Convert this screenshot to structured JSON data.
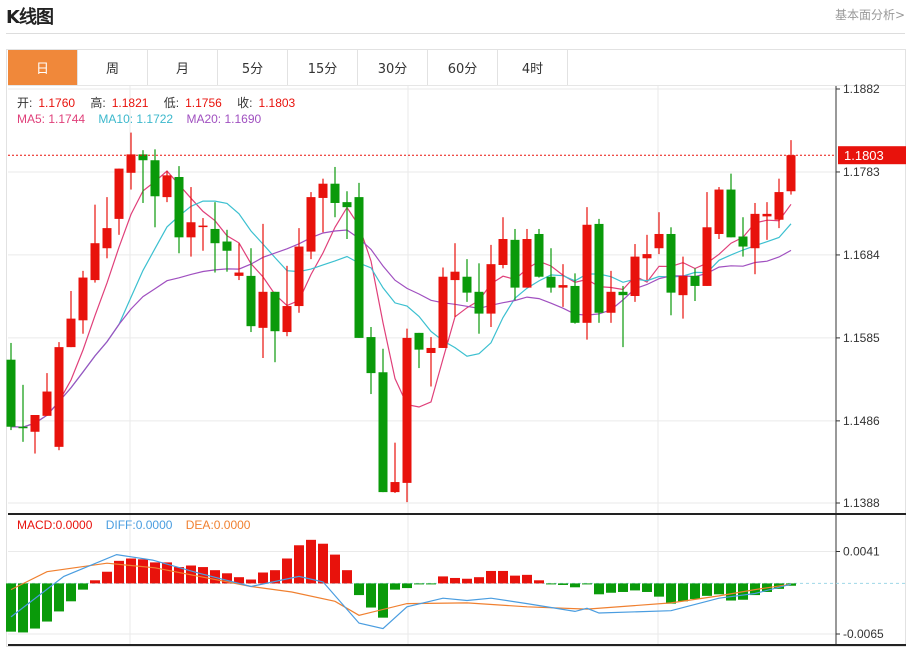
{
  "header": {
    "title": "K线图",
    "link": "基本面分析>"
  },
  "tabs": [
    {
      "label": "日",
      "active": true
    },
    {
      "label": "周"
    },
    {
      "label": "月"
    },
    {
      "label": "5分"
    },
    {
      "label": "15分"
    },
    {
      "label": "30分"
    },
    {
      "label": "60分"
    },
    {
      "label": "4时"
    }
  ],
  "ohlc": {
    "open_label": "开:",
    "open": "1.1760",
    "high_label": "高:",
    "high": "1.1821",
    "low_label": "低:",
    "low": "1.1756",
    "close_label": "收:",
    "close": "1.1803"
  },
  "ma": {
    "ma5": "MA5: 1.1744",
    "ma10": "MA10: 1.1722",
    "ma20": "MA20: 1.1690"
  },
  "macd_legend": {
    "macd": "MACD:0.0000",
    "diff": "DIFF:0.0000",
    "dea": "DEA:0.0000"
  },
  "current_price_label": "1.1803",
  "colors": {
    "up": "#e8120c",
    "down": "#0a9a0a",
    "ma5": "#e0407a",
    "ma10": "#3cc0d0",
    "ma20": "#a050c0",
    "diff": "#4a9de0",
    "dea": "#f08030",
    "active_tab": "#f0883a"
  },
  "chart_data": [
    {
      "type": "candlestick",
      "y_ticks": [
        "1.1882",
        "1.1783",
        "1.1684",
        "1.1585",
        "1.1486",
        "1.1388"
      ],
      "ylim": [
        1.1388,
        1.1882
      ],
      "grid": true,
      "current_price": 1.1803,
      "candles": [
        [
          1.1559,
          1.1579,
          1.1475,
          1.1479
        ],
        [
          1.1479,
          1.1529,
          1.1461,
          1.1478
        ],
        [
          1.1473,
          1.1493,
          1.1447,
          1.1493
        ],
        [
          1.1492,
          1.1543,
          1.1492,
          1.1521
        ],
        [
          1.1455,
          1.158,
          1.1451,
          1.1574
        ],
        [
          1.1574,
          1.1641,
          1.1574,
          1.1608
        ],
        [
          1.1606,
          1.1665,
          1.159,
          1.1657
        ],
        [
          1.1654,
          1.1744,
          1.1651,
          1.1698
        ],
        [
          1.1692,
          1.1753,
          1.168,
          1.1716
        ],
        [
          1.1727,
          1.1787,
          1.1708,
          1.1787
        ],
        [
          1.1782,
          1.183,
          1.1762,
          1.1804
        ],
        [
          1.1804,
          1.1809,
          1.1746,
          1.1797
        ],
        [
          1.1797,
          1.181,
          1.1717,
          1.1754
        ],
        [
          1.1753,
          1.1784,
          1.1747,
          1.1779
        ],
        [
          1.1777,
          1.179,
          1.1686,
          1.1705
        ],
        [
          1.1705,
          1.1765,
          1.1682,
          1.1723
        ],
        [
          1.1718,
          1.1728,
          1.1689,
          1.1719
        ],
        [
          1.1715,
          1.1747,
          1.1663,
          1.1698
        ],
        [
          1.17,
          1.1714,
          1.1664,
          1.1689
        ],
        [
          1.1659,
          1.1698,
          1.1654,
          1.1663
        ],
        [
          1.1659,
          1.1692,
          1.1592,
          1.1599
        ],
        [
          1.1597,
          1.1721,
          1.1561,
          1.164
        ],
        [
          1.164,
          1.164,
          1.1556,
          1.1593
        ],
        [
          1.1592,
          1.1671,
          1.1587,
          1.1623
        ],
        [
          1.1623,
          1.1716,
          1.1615,
          1.1694
        ],
        [
          1.1688,
          1.1759,
          1.1679,
          1.1753
        ],
        [
          1.1752,
          1.1775,
          1.1711,
          1.1769
        ],
        [
          1.1769,
          1.1789,
          1.1729,
          1.1746
        ],
        [
          1.1747,
          1.176,
          1.1703,
          1.1741
        ],
        [
          1.1753,
          1.177,
          1.1585,
          1.1585
        ],
        [
          1.1586,
          1.1598,
          1.1518,
          1.1543
        ],
        [
          1.1544,
          1.1572,
          1.1401,
          1.1401
        ],
        [
          1.1401,
          1.146,
          1.14,
          1.1413
        ],
        [
          1.1412,
          1.1596,
          1.1389,
          1.1585
        ],
        [
          1.1591,
          1.1591,
          1.1549,
          1.1571
        ],
        [
          1.1567,
          1.1586,
          1.1527,
          1.1573
        ],
        [
          1.1573,
          1.1669,
          1.1573,
          1.1658
        ],
        [
          1.1654,
          1.1698,
          1.161,
          1.1664
        ],
        [
          1.1658,
          1.1679,
          1.1628,
          1.1639
        ],
        [
          1.164,
          1.1674,
          1.159,
          1.1614
        ],
        [
          1.1614,
          1.1696,
          1.1598,
          1.1673
        ],
        [
          1.1672,
          1.1729,
          1.1668,
          1.1703
        ],
        [
          1.1702,
          1.1715,
          1.163,
          1.1645
        ],
        [
          1.1645,
          1.1715,
          1.1645,
          1.1703
        ],
        [
          1.1709,
          1.1715,
          1.1657,
          1.1658
        ],
        [
          1.1658,
          1.1692,
          1.1639,
          1.1645
        ],
        [
          1.1645,
          1.1673,
          1.1622,
          1.1648
        ],
        [
          1.1647,
          1.1662,
          1.1602,
          1.1603
        ],
        [
          1.1603,
          1.1741,
          1.1583,
          1.172
        ],
        [
          1.1721,
          1.1727,
          1.1603,
          1.1615
        ],
        [
          1.1615,
          1.1665,
          1.1603,
          1.164
        ],
        [
          1.164,
          1.1647,
          1.1574,
          1.1636
        ],
        [
          1.1635,
          1.1697,
          1.1628,
          1.1682
        ],
        [
          1.168,
          1.1708,
          1.1654,
          1.1685
        ],
        [
          1.1692,
          1.1735,
          1.1685,
          1.1709
        ],
        [
          1.1709,
          1.1717,
          1.1612,
          1.1639
        ],
        [
          1.1636,
          1.1682,
          1.1608,
          1.1659
        ],
        [
          1.1659,
          1.1668,
          1.1629,
          1.1647
        ],
        [
          1.1647,
          1.1759,
          1.1647,
          1.1717
        ],
        [
          1.1709,
          1.1765,
          1.1703,
          1.1762
        ],
        [
          1.1762,
          1.1781,
          1.1705,
          1.1705
        ],
        [
          1.1706,
          1.1729,
          1.1682,
          1.1694
        ],
        [
          1.1692,
          1.1746,
          1.1661,
          1.1733
        ],
        [
          1.173,
          1.1747,
          1.1702,
          1.1733
        ],
        [
          1.1726,
          1.1775,
          1.1716,
          1.1759
        ],
        [
          1.176,
          1.1821,
          1.1756,
          1.1803
        ]
      ]
    },
    {
      "type": "bar",
      "y_ticks": [
        "0.0041",
        "-0.0065"
      ],
      "ylim": [
        -0.0065,
        0.0041
      ],
      "macd": [
        -0.0062,
        -0.0063,
        -0.0058,
        -0.0049,
        -0.0036,
        -0.0023,
        -0.0008,
        0.0004,
        0.0015,
        0.0029,
        0.0032,
        0.0031,
        0.0027,
        0.0027,
        0.0021,
        0.0023,
        0.0021,
        0.0017,
        0.0013,
        0.0008,
        0.0005,
        0.0014,
        0.0017,
        0.0032,
        0.0049,
        0.0056,
        0.0051,
        0.0037,
        0.0017,
        -0.0015,
        -0.0031,
        -0.0044,
        -0.0008,
        -0.0006,
        -0.0001,
        -0.0001,
        0.0009,
        0.0007,
        0.0006,
        0.0008,
        0.0016,
        0.0016,
        0.001,
        0.0011,
        0.0004,
        -0.0001,
        -0.0002,
        -0.0005,
        -0.0001,
        -0.0014,
        -0.0012,
        -0.0011,
        -0.0009,
        -0.0011,
        -0.0017,
        -0.0026,
        -0.0023,
        -0.002,
        -0.0016,
        -0.0014,
        -0.0022,
        -0.0021,
        -0.0015,
        -0.0011,
        -0.0007,
        -0.0003
      ],
      "diff": [
        [
          0,
          -0.0043
        ],
        [
          4.4,
          0.0009
        ],
        [
          8.8,
          0.0037
        ],
        [
          11.8,
          0.003
        ],
        [
          15.7,
          0.0013
        ],
        [
          20,
          -0.0004
        ],
        [
          24,
          0.0009
        ],
        [
          26,
          0.0002
        ],
        [
          29,
          -0.0051
        ],
        [
          31,
          -0.0058
        ],
        [
          33,
          -0.003
        ],
        [
          36,
          -0.0019
        ],
        [
          38,
          -0.0022
        ],
        [
          40,
          -0.0019
        ],
        [
          43,
          -0.0026
        ],
        [
          47,
          -0.0036
        ],
        [
          48,
          -0.0032
        ],
        [
          49,
          -0.0038
        ],
        [
          55,
          -0.0035
        ],
        [
          59,
          -0.0019
        ],
        [
          62,
          -0.0013
        ],
        [
          65,
          -0.0001
        ]
      ],
      "dea": [
        [
          0,
          -0.0008
        ],
        [
          3,
          0.0015
        ],
        [
          8,
          0.0026
        ],
        [
          12,
          0.002
        ],
        [
          20,
          -0.0004
        ],
        [
          23.4,
          -0.0011
        ],
        [
          27,
          -0.0023
        ],
        [
          29,
          -0.0041
        ],
        [
          33,
          -0.0026
        ],
        [
          38,
          -0.0025
        ],
        [
          43,
          -0.003
        ],
        [
          48,
          -0.0033
        ],
        [
          55,
          -0.0025
        ],
        [
          59,
          -0.0016
        ],
        [
          62,
          -0.0008
        ],
        [
          65,
          -0.0001
        ]
      ]
    }
  ]
}
